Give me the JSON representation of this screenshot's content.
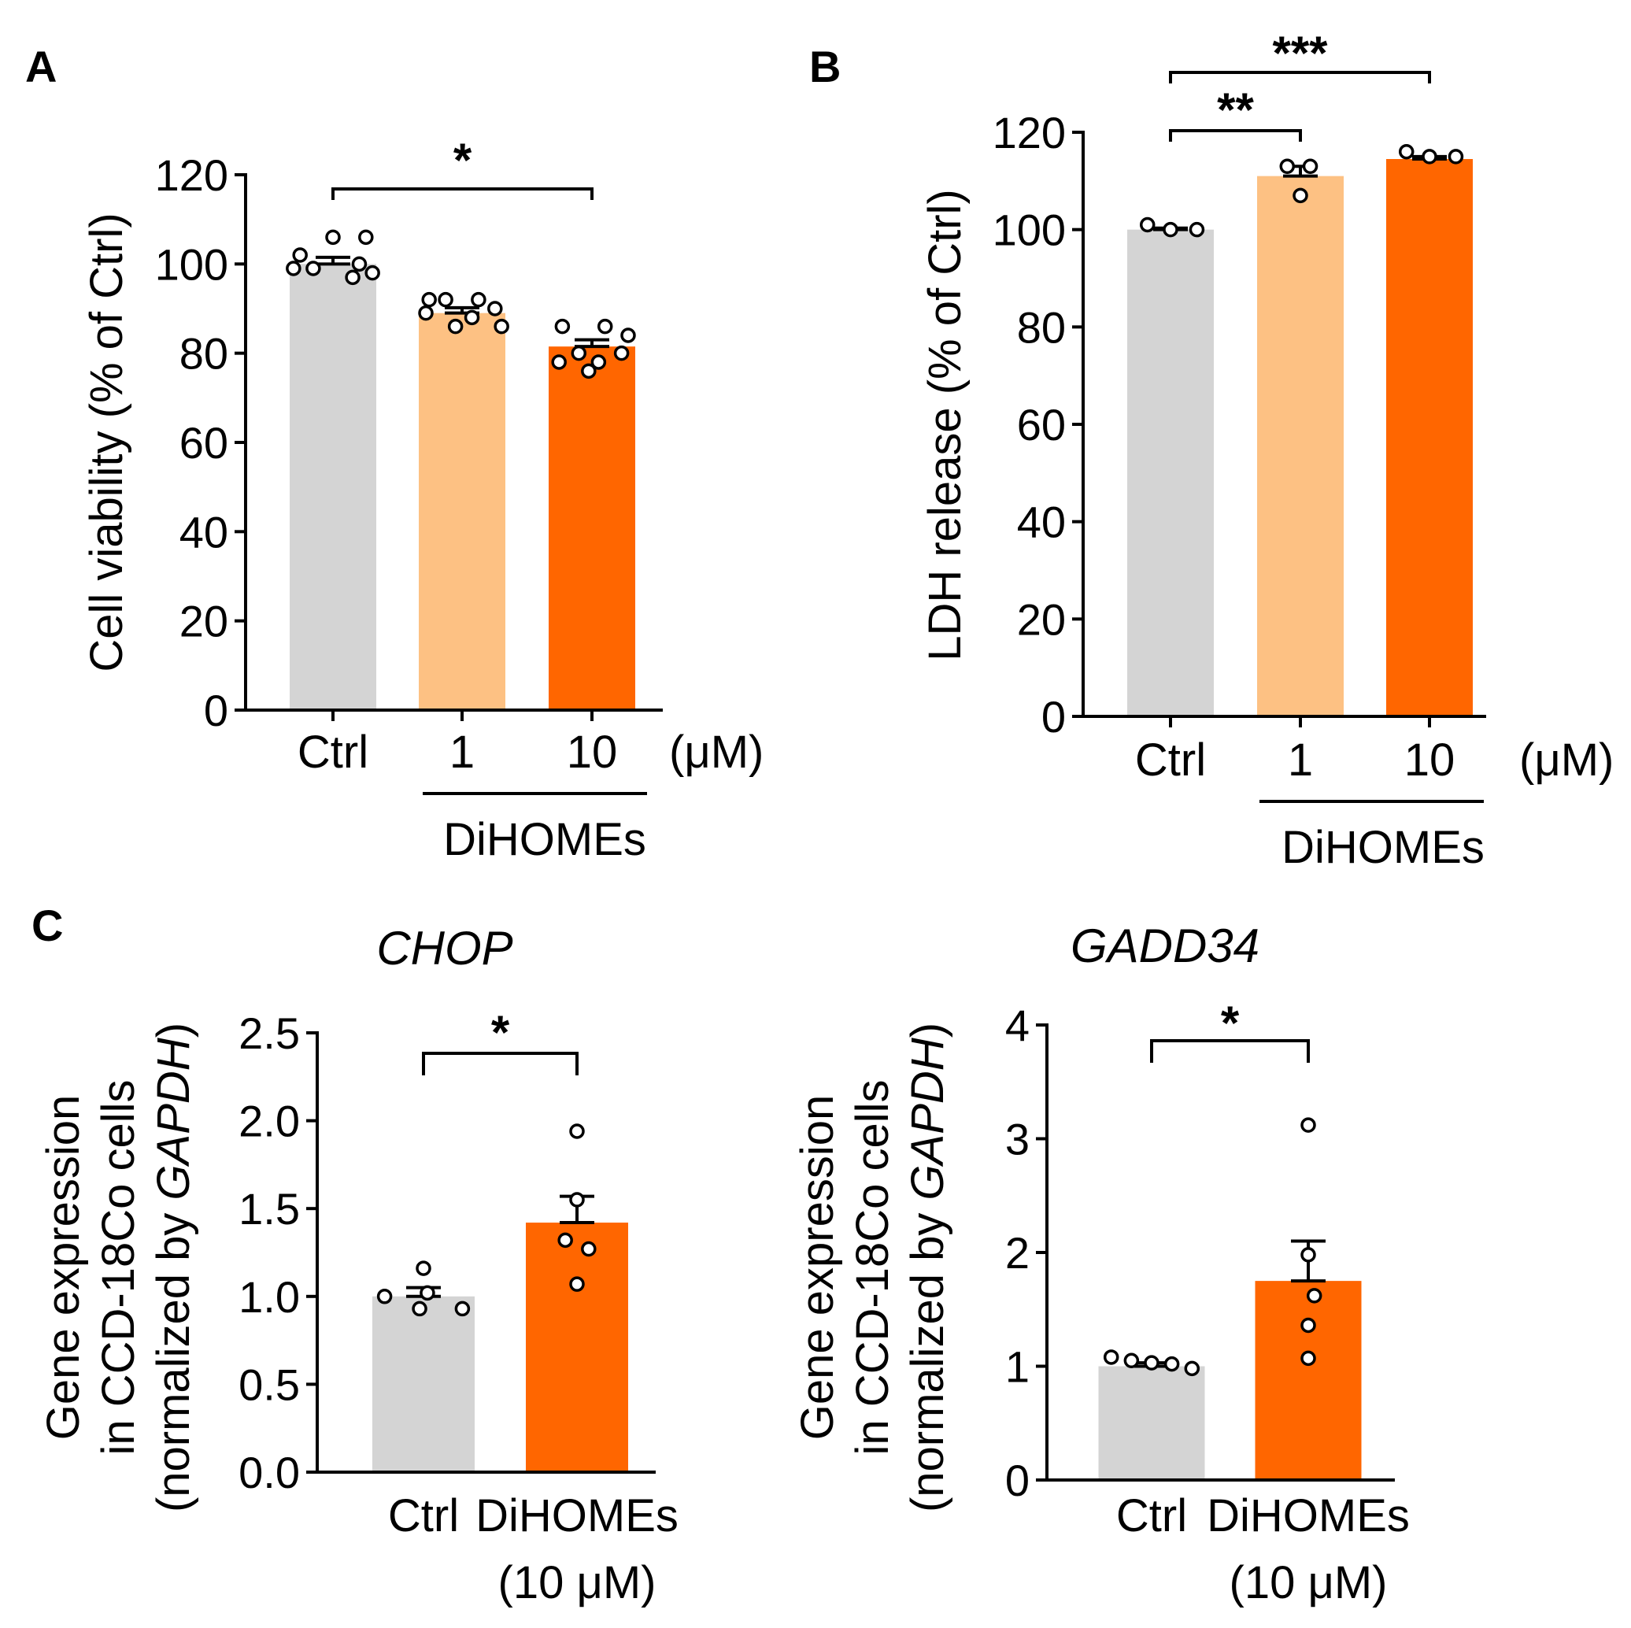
{
  "chart_data": [
    {
      "id": "A",
      "type": "bar",
      "panel_label": "A",
      "ylabel": "Cell viability (% of Ctrl)",
      "ylim": [
        0,
        120
      ],
      "yticks": [
        "0",
        "20",
        "40",
        "60",
        "80",
        "100",
        "120"
      ],
      "categories": [
        "Ctrl",
        "1",
        "10"
      ],
      "unit": "(μM)",
      "group_label": "DiHOMEs",
      "values": [
        100,
        89,
        81.5
      ],
      "sem": [
        1.5,
        1.2,
        1.5
      ],
      "colors": [
        "#d4d4d4",
        "#fdc183",
        "#ff6600"
      ],
      "points": [
        [
          106,
          106,
          102,
          100,
          99,
          99,
          97,
          98
        ],
        [
          92,
          92,
          92,
          90,
          89,
          88,
          86,
          86
        ],
        [
          86,
          86,
          84,
          80,
          80,
          78,
          78,
          76
        ]
      ],
      "significance": [
        {
          "from": 0,
          "to": 2,
          "label": "*"
        }
      ]
    },
    {
      "id": "B",
      "type": "bar",
      "panel_label": "B",
      "ylabel": "LDH release (% of Ctrl)",
      "ylim": [
        0,
        120
      ],
      "yticks": [
        "0",
        "20",
        "40",
        "60",
        "80",
        "100",
        "120"
      ],
      "categories": [
        "Ctrl",
        "1",
        "10"
      ],
      "unit": "(μM)",
      "group_label": "DiHOMEs",
      "values": [
        100,
        111,
        114.5
      ],
      "sem": [
        0.3,
        2,
        0.5
      ],
      "colors": [
        "#d4d4d4",
        "#fdc183",
        "#ff6600"
      ],
      "points": [
        [
          101,
          100,
          100
        ],
        [
          113,
          113,
          107
        ],
        [
          116,
          115,
          115
        ]
      ],
      "significance": [
        {
          "from": 0,
          "to": 1,
          "label": "**"
        },
        {
          "from": 0,
          "to": 2,
          "label": "***"
        }
      ]
    },
    {
      "id": "C-CHOP",
      "type": "bar",
      "panel_label": "C",
      "title": "CHOP",
      "ylabel_lines": [
        "Gene expression",
        "in CCD-18Co cells"
      ],
      "ylabel_norm_prefix": "(normalized by ",
      "ylabel_norm_gene": "GAPDH",
      "ylabel_norm_suffix": ")",
      "ylim": [
        0,
        2.5
      ],
      "yticks": [
        "0.0",
        "0.5",
        "1.0",
        "1.5",
        "2.0",
        "2.5"
      ],
      "categories": [
        "Ctrl",
        "DiHOMEs"
      ],
      "category_sublabels": [
        "",
        "(10 μM)"
      ],
      "values": [
        1.0,
        1.42
      ],
      "sem": [
        0.05,
        0.15
      ],
      "colors": [
        "#d4d4d4",
        "#ff6600"
      ],
      "points": [
        [
          1.0,
          1.16,
          1.02,
          0.93,
          0.93
        ],
        [
          1.94,
          1.55,
          1.32,
          1.27,
          1.07
        ]
      ],
      "significance": [
        {
          "from": 0,
          "to": 1,
          "label": "*"
        }
      ]
    },
    {
      "id": "C-GADD34",
      "type": "bar",
      "title": "GADD34",
      "ylabel_lines": [
        "Gene expression",
        "in CCD-18Co cells"
      ],
      "ylabel_norm_prefix": "(normalized by ",
      "ylabel_norm_gene": "GAPDH",
      "ylabel_norm_suffix": ")",
      "ylim": [
        0,
        4
      ],
      "yticks": [
        "0",
        "1",
        "2",
        "3",
        "4"
      ],
      "categories": [
        "Ctrl",
        "DiHOMEs"
      ],
      "category_sublabels": [
        "",
        "(10 μM)"
      ],
      "values": [
        1.0,
        1.75
      ],
      "sem": [
        0.03,
        0.35
      ],
      "colors": [
        "#d4d4d4",
        "#ff6600"
      ],
      "points": [
        [
          1.08,
          1.05,
          1.03,
          1.02,
          0.98
        ],
        [
          3.12,
          1.98,
          1.62,
          1.36,
          1.07
        ]
      ],
      "significance": [
        {
          "from": 0,
          "to": 1,
          "label": "*"
        }
      ]
    }
  ]
}
